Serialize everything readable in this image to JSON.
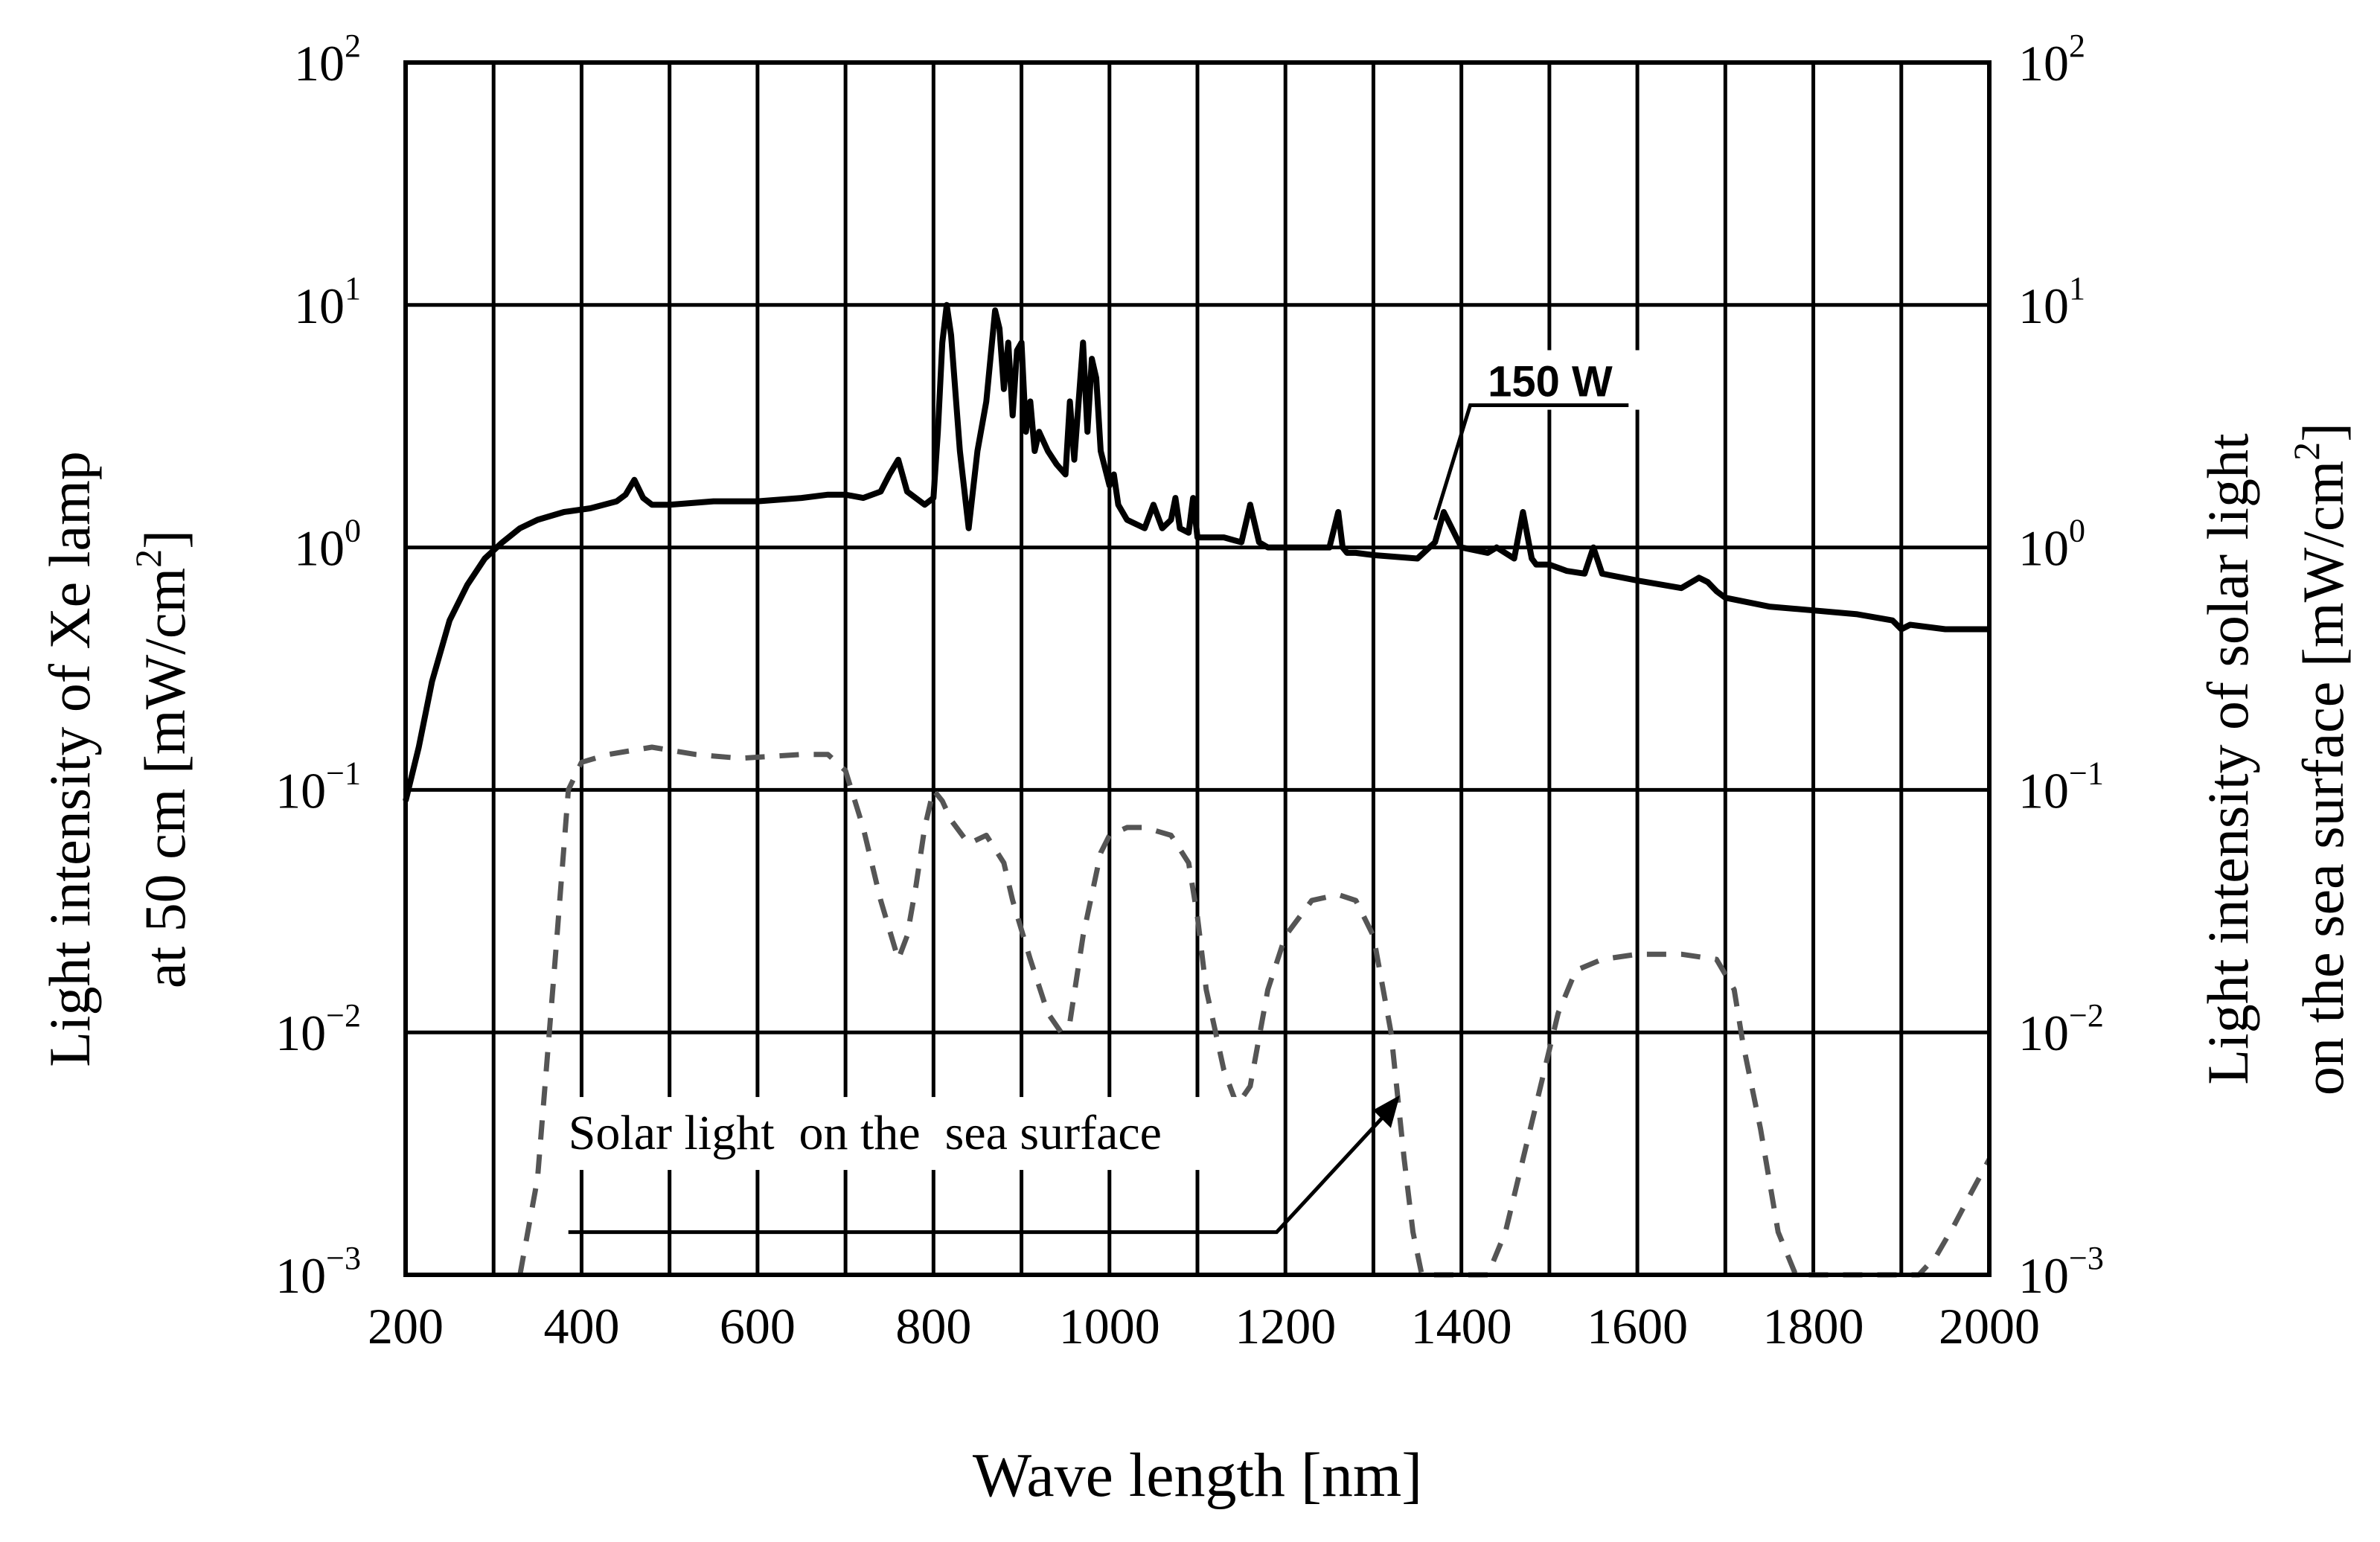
{
  "chart_data": {
    "type": "line",
    "title": "",
    "xlabel": "Wave length [nm]",
    "ylabel_left_line1": "Light intensity of Xe lamp",
    "ylabel_left_line2": "at 50 cm [mW/cm",
    "ylabel_left_sup": "2",
    "ylabel_left_close": "]",
    "ylabel_right_line1": "Light intensity of solar light",
    "ylabel_right_line2": "on the sea surface [mW/cm",
    "ylabel_right_sup": "2",
    "ylabel_right_close": "]",
    "xlim": [
      200,
      2000
    ],
    "ylim": [
      0.001,
      100
    ],
    "yscale": "log",
    "grid": true,
    "x_ticks": [
      "200",
      "400",
      "600",
      "800",
      "1000",
      "1200",
      "1400",
      "1600",
      "1800",
      "2000"
    ],
    "y_ticks": [
      {
        "base": "10",
        "exp": "2",
        "value": 100
      },
      {
        "base": "10",
        "exp": "1",
        "value": 10
      },
      {
        "base": "10",
        "exp": "0",
        "value": 1
      },
      {
        "base": "10",
        "exp": "−1",
        "value": 0.1
      },
      {
        "base": "10",
        "exp": "−2",
        "value": 0.01
      },
      {
        "base": "10",
        "exp": "−3",
        "value": 0.001
      }
    ],
    "annotations": [
      {
        "text": "150 W",
        "points_to": [
          1370,
          1.3
        ]
      },
      {
        "text": "Solar light  on the  sea surface",
        "points_to": [
          1330,
          0.0055
        ]
      }
    ],
    "series": [
      {
        "name": "150 W",
        "style": "solid",
        "x": [
          200,
          215,
          230,
          250,
          270,
          290,
          310,
          330,
          350,
          380,
          410,
          440,
          450,
          460,
          470,
          480,
          500,
          550,
          600,
          650,
          680,
          700,
          720,
          740,
          750,
          760,
          770,
          790,
          800,
          805,
          810,
          815,
          820,
          830,
          840,
          850,
          860,
          870,
          875,
          880,
          885,
          890,
          895,
          900,
          905,
          910,
          915,
          920,
          930,
          940,
          950,
          955,
          960,
          970,
          975,
          980,
          985,
          990,
          1000,
          1005,
          1010,
          1020,
          1040,
          1050,
          1060,
          1070,
          1075,
          1080,
          1090,
          1095,
          1100,
          1110,
          1130,
          1150,
          1160,
          1170,
          1180,
          1200,
          1250,
          1260,
          1265,
          1270,
          1280,
          1300,
          1350,
          1370,
          1380,
          1400,
          1430,
          1440,
          1460,
          1470,
          1480,
          1485,
          1490,
          1500,
          1520,
          1540,
          1550,
          1560,
          1600,
          1650,
          1670,
          1680,
          1690,
          1700,
          1750,
          1800,
          1850,
          1890,
          1900,
          1910,
          1950,
          2000
        ],
        "values": [
          0.09,
          0.15,
          0.28,
          0.5,
          0.7,
          0.9,
          1.05,
          1.2,
          1.3,
          1.4,
          1.45,
          1.55,
          1.65,
          1.9,
          1.6,
          1.5,
          1.5,
          1.55,
          1.55,
          1.6,
          1.65,
          1.65,
          1.6,
          1.7,
          2.0,
          2.3,
          1.7,
          1.5,
          1.6,
          3.0,
          7.0,
          10.0,
          7.5,
          2.5,
          1.2,
          2.5,
          4.0,
          9.5,
          8.0,
          4.5,
          7.0,
          3.5,
          6.5,
          7.0,
          3.0,
          4.0,
          2.5,
          3.0,
          2.5,
          2.2,
          2.0,
          4.0,
          2.3,
          7.0,
          3.0,
          6.0,
          5.0,
          2.5,
          1.8,
          2.0,
          1.5,
          1.3,
          1.2,
          1.5,
          1.2,
          1.3,
          1.6,
          1.2,
          1.15,
          1.6,
          1.1,
          1.1,
          1.1,
          1.05,
          1.5,
          1.05,
          1.0,
          1.0,
          1.0,
          1.4,
          1.0,
          0.95,
          0.95,
          0.93,
          0.9,
          1.05,
          1.4,
          1.0,
          0.95,
          1.0,
          0.9,
          1.4,
          0.9,
          0.85,
          0.85,
          0.85,
          0.8,
          0.78,
          1.0,
          0.78,
          0.73,
          0.68,
          0.75,
          0.72,
          0.66,
          0.62,
          0.57,
          0.55,
          0.53,
          0.5,
          0.46,
          0.48,
          0.46,
          0.46
        ]
      },
      {
        "name": "Solar light on the sea surface",
        "style": "dashed",
        "x": [
          330,
          350,
          370,
          385,
          400,
          430,
          480,
          530,
          580,
          650,
          680,
          700,
          720,
          740,
          760,
          770,
          780,
          790,
          800,
          810,
          820,
          840,
          860,
          880,
          890,
          910,
          930,
          945,
          955,
          970,
          990,
          1000,
          1020,
          1040,
          1070,
          1090,
          1100,
          1110,
          1130,
          1145,
          1160,
          1180,
          1200,
          1230,
          1260,
          1280,
          1300,
          1320,
          1335,
          1345,
          1355,
          1430,
          1450,
          1470,
          1490,
          1510,
          1530,
          1560,
          1600,
          1650,
          1690,
          1710,
          1720,
          1740,
          1760,
          1780,
          1920,
          1940,
          1960,
          1980,
          2000
        ],
        "values": [
          0.001,
          0.0025,
          0.02,
          0.1,
          0.13,
          0.14,
          0.15,
          0.14,
          0.135,
          0.14,
          0.14,
          0.12,
          0.07,
          0.035,
          0.02,
          0.025,
          0.04,
          0.07,
          0.1,
          0.09,
          0.075,
          0.06,
          0.065,
          0.05,
          0.035,
          0.02,
          0.012,
          0.01,
          0.011,
          0.025,
          0.055,
          0.065,
          0.07,
          0.07,
          0.065,
          0.05,
          0.03,
          0.015,
          0.007,
          0.005,
          0.006,
          0.015,
          0.025,
          0.035,
          0.037,
          0.035,
          0.025,
          0.01,
          0.003,
          0.0015,
          0.001,
          0.001,
          0.0015,
          0.003,
          0.006,
          0.012,
          0.018,
          0.02,
          0.021,
          0.021,
          0.02,
          0.015,
          0.009,
          0.004,
          0.0015,
          0.001,
          0.001,
          0.0012,
          0.0016,
          0.0022,
          0.003
        ]
      }
    ]
  }
}
